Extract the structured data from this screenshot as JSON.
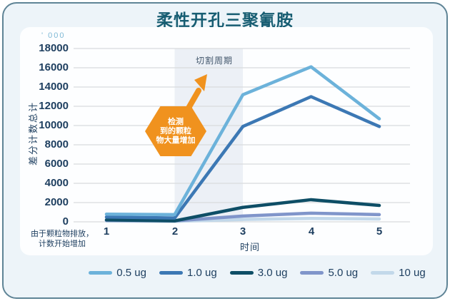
{
  "title": "柔性开孔三聚氰胺",
  "units_label": "' 000",
  "note_line1": "由于颗粒物排放，",
  "note_line2": "计数开始增加",
  "band_label": "切割周期",
  "hexagon_annotation": {
    "line1": "检测",
    "line2": "到的颗粒",
    "line3": "物大量增加"
  },
  "colors": {
    "accent_orange": "#f0921e",
    "band": "#ecf0f6",
    "grid": "#d8dbdd",
    "title_text": "#175d72",
    "tick_text": "#1d3e5f",
    "units_text": "#7fb9d6",
    "frame_border": "#5f8496",
    "page_background": "#edf4f9",
    "card_background": "#fdfeff"
  },
  "chart_data": {
    "type": "line",
    "title": "柔性开孔三聚氰胺",
    "xlabel": "时间",
    "ylabel": "差分计数总计",
    "units_note": "' 000",
    "x": [
      1,
      2,
      3,
      4,
      5
    ],
    "xticks": [
      "1",
      "2",
      "3",
      "4",
      "5"
    ],
    "yticks": [
      "18000",
      "16000",
      "14000",
      "12000",
      "10000",
      "8000",
      "6000",
      "4000",
      "2000",
      "0"
    ],
    "ylim": [
      0,
      18000
    ],
    "ytick_step": 2000,
    "grid": "horizontal",
    "legend_position": "bottom",
    "band_x": [
      2,
      3
    ],
    "band_label": "切割周期",
    "series": [
      {
        "name": "0.5 ug",
        "color": "#6cb2da",
        "values": [
          800,
          750,
          13200,
          16100,
          10700
        ]
      },
      {
        "name": "1.0 ug",
        "color": "#3c78b4",
        "values": [
          500,
          400,
          9900,
          13000,
          9900
        ]
      },
      {
        "name": "3.0 ug",
        "color": "#0e4e66",
        "values": [
          200,
          100,
          1500,
          2300,
          1700
        ]
      },
      {
        "name": "5.0 ug",
        "color": "#8095ca",
        "values": [
          150,
          100,
          600,
          900,
          750
        ]
      },
      {
        "name": "10 ug",
        "color": "#c2d8ea",
        "values": [
          80,
          50,
          250,
          350,
          300
        ]
      }
    ]
  }
}
